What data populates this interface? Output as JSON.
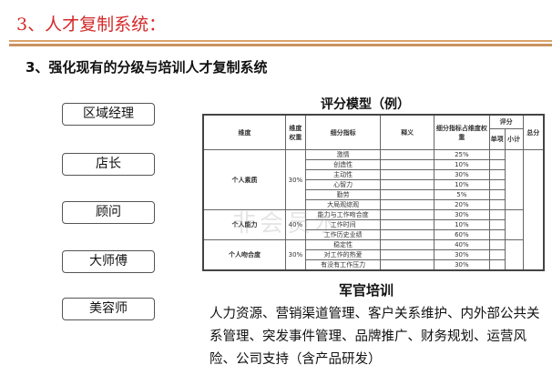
{
  "title": "3、人才复制系统：",
  "subtitle": "3、强化现有的分级与培训人才复制系统",
  "levels": [
    "区域经理",
    "店长",
    "顾问",
    "大师傅",
    "美容师"
  ],
  "model": {
    "title": "评分模型（例）",
    "headers": {
      "dim": "维度",
      "weight": "维度权重",
      "sub": "细分指标",
      "def": "释义",
      "subweight": "细分指标占维度权重",
      "score": "评分",
      "single": "单项",
      "subtotal": "小计",
      "total": "总分"
    },
    "groups": [
      {
        "name": "个人素质",
        "weight": "30%",
        "items": [
          [
            "激情",
            "25%"
          ],
          [
            "创造性",
            "10%"
          ],
          [
            "主动性",
            "30%"
          ],
          [
            "心智力",
            "10%"
          ],
          [
            "勤劳",
            "5%"
          ],
          [
            "大局观综观",
            "20%"
          ]
        ]
      },
      {
        "name": "个人能力",
        "weight": "40%",
        "items": [
          [
            "能力与工作吻合度",
            "30%"
          ],
          [
            "工作时间",
            "10%"
          ],
          [
            "工作历史业绩",
            "60%"
          ]
        ]
      },
      {
        "name": "个人吻合度",
        "weight": "30%",
        "items": [
          [
            "稳定性",
            "40%"
          ],
          [
            "对工作的热爱",
            "30%"
          ],
          [
            "有没有工作压力",
            "30%"
          ]
        ]
      }
    ]
  },
  "watermark": "非会员水",
  "training": {
    "title": "军官培训",
    "text": "人力资源、营销渠道管理、客户关系维护、内外部公共关系管理、突发事件管理、品牌推广、财务规划、运营风险、公司支持（含产品研发）"
  },
  "colors": {
    "title": "#d42a2a",
    "rule": "#c89260"
  }
}
